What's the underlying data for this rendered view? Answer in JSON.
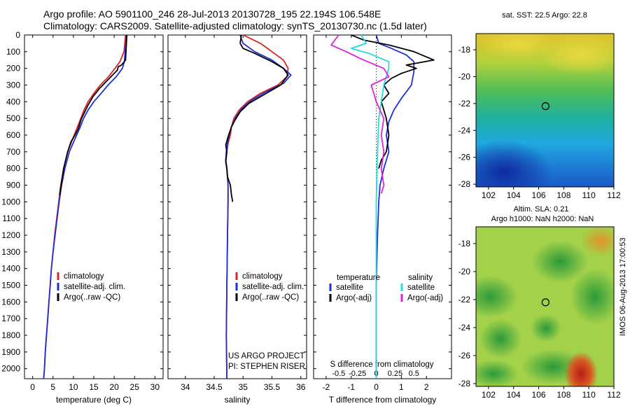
{
  "header": {
    "line1": "Argo profile: AO 5901100_246 28-Jul-2013 20130728_195 22.194S 106.548E",
    "line2": "Climatology: CARS2009. Satellite-adjusted climatology: synTS_20130730.nc (1.5d later)"
  },
  "side_stamp": "IMOS 06-Aug-2013 17:00:53",
  "colors": {
    "climatology": "#dd2222",
    "satellite": "#1e2ed8",
    "argo": "#000000",
    "sat_s": "#22dddd",
    "argo_s": "#dd22dd"
  },
  "chart_data": [
    {
      "type": "line",
      "id": "temperature",
      "xlabel": "temperature (deg C)",
      "xlim": [
        -2,
        32
      ],
      "xticks": [
        0,
        5,
        10,
        15,
        20,
        25,
        30
      ],
      "ylim": [
        2060,
        0
      ],
      "yticks": [
        0,
        100,
        200,
        300,
        400,
        500,
        600,
        700,
        800,
        900,
        1000,
        1100,
        1200,
        1300,
        1400,
        1500,
        1600,
        1700,
        1800,
        1900,
        2000
      ],
      "legend": [
        "climatology",
        "satellite-adj. clim.",
        "Argo(..raw -QC)"
      ],
      "series": [
        {
          "name": "climatology",
          "color": "#dd2222",
          "points": [
            [
              22.8,
              0
            ],
            [
              22.6,
              50
            ],
            [
              22.4,
              100
            ],
            [
              21.4,
              160
            ],
            [
              20.2,
              200
            ],
            [
              18.6,
              250
            ],
            [
              16.6,
              300
            ],
            [
              15.0,
              350
            ],
            [
              13.6,
              400
            ],
            [
              12.6,
              450
            ],
            [
              11.8,
              500
            ],
            [
              11.0,
              550
            ],
            [
              10.2,
              600
            ],
            [
              9.4,
              650
            ],
            [
              8.6,
              700
            ],
            [
              7.6,
              800
            ],
            [
              6.9,
              900
            ],
            [
              6.4,
              1000
            ],
            [
              5.9,
              1100
            ],
            [
              5.4,
              1200
            ],
            [
              5.0,
              1300
            ],
            [
              4.6,
              1400
            ],
            [
              4.3,
              1500
            ],
            [
              4.0,
              1600
            ],
            [
              3.7,
              1700
            ],
            [
              3.4,
              1800
            ],
            [
              3.1,
              1900
            ],
            [
              2.9,
              2000
            ],
            [
              2.7,
              2060
            ]
          ]
        },
        {
          "name": "satellite-adj. clim.",
          "color": "#1e2ed8",
          "points": [
            [
              22.9,
              0
            ],
            [
              22.9,
              50
            ],
            [
              22.7,
              100
            ],
            [
              22.5,
              160
            ],
            [
              22.0,
              200
            ],
            [
              20.5,
              250
            ],
            [
              18.5,
              300
            ],
            [
              16.8,
              350
            ],
            [
              15.0,
              400
            ],
            [
              13.6,
              450
            ],
            [
              12.5,
              500
            ],
            [
              11.7,
              550
            ],
            [
              10.8,
              600
            ],
            [
              9.9,
              650
            ],
            [
              9.0,
              700
            ],
            [
              7.9,
              800
            ],
            [
              7.1,
              900
            ],
            [
              6.5,
              1000
            ],
            [
              6.0,
              1100
            ],
            [
              5.5,
              1200
            ],
            [
              5.0,
              1300
            ],
            [
              4.6,
              1400
            ],
            [
              4.3,
              1500
            ],
            [
              4.0,
              1600
            ],
            [
              3.7,
              1700
            ],
            [
              3.4,
              1800
            ],
            [
              3.1,
              1900
            ],
            [
              2.9,
              2000
            ],
            [
              2.7,
              2060
            ]
          ]
        },
        {
          "name": "Argo(..raw -QC)",
          "color": "#000000",
          "points": [
            [
              23.1,
              0
            ],
            [
              23.0,
              50
            ],
            [
              22.9,
              100
            ],
            [
              22.8,
              150
            ],
            [
              21.8,
              180
            ],
            [
              21.0,
              190
            ],
            [
              20.8,
              210
            ],
            [
              19.6,
              240
            ],
            [
              18.0,
              280
            ],
            [
              16.4,
              320
            ],
            [
              14.8,
              370
            ],
            [
              13.6,
              420
            ],
            [
              12.8,
              460
            ],
            [
              12.0,
              500
            ],
            [
              11.2,
              560
            ],
            [
              10.4,
              600
            ],
            [
              9.4,
              640
            ],
            [
              8.6,
              700
            ],
            [
              7.6,
              800
            ],
            [
              7.0,
              900
            ],
            [
              6.6,
              960
            ]
          ]
        }
      ]
    },
    {
      "type": "line",
      "id": "salinity",
      "xlabel": "salinity",
      "xlim": [
        33.7,
        36.1
      ],
      "xticks": [
        34,
        34.5,
        35,
        35.5,
        36
      ],
      "ylim": [
        2060,
        0
      ],
      "legend": [
        "climatology",
        "satellite-adj. clim.",
        "Argo(..raw -QC)"
      ],
      "annotations": [
        "US ARGO PROJECT",
        "PI: STEPHEN RISER"
      ],
      "series": [
        {
          "name": "climatology",
          "color": "#dd2222",
          "points": [
            [
              35.0,
              0
            ],
            [
              35.3,
              50
            ],
            [
              35.5,
              100
            ],
            [
              35.7,
              150
            ],
            [
              35.78,
              200
            ],
            [
              35.76,
              250
            ],
            [
              35.6,
              300
            ],
            [
              35.3,
              350
            ],
            [
              35.08,
              400
            ],
            [
              34.93,
              450
            ],
            [
              34.84,
              500
            ],
            [
              34.8,
              550
            ],
            [
              34.78,
              600
            ],
            [
              34.74,
              650
            ],
            [
              34.72,
              700
            ],
            [
              34.7,
              750
            ],
            [
              34.72,
              800
            ],
            [
              34.74,
              900
            ],
            [
              34.74,
              1000
            ],
            [
              34.73,
              1200
            ],
            [
              34.72,
              1500
            ],
            [
              34.71,
              1800
            ],
            [
              34.72,
              2060
            ]
          ]
        },
        {
          "name": "satellite-adj. clim.",
          "color": "#1e2ed8",
          "points": [
            [
              34.95,
              0
            ],
            [
              35.0,
              50
            ],
            [
              35.2,
              100
            ],
            [
              35.5,
              150
            ],
            [
              35.7,
              200
            ],
            [
              35.83,
              240
            ],
            [
              35.7,
              290
            ],
            [
              35.4,
              340
            ],
            [
              35.15,
              390
            ],
            [
              34.98,
              440
            ],
            [
              34.88,
              490
            ],
            [
              34.8,
              550
            ],
            [
              34.76,
              600
            ],
            [
              34.73,
              650
            ],
            [
              34.71,
              700
            ],
            [
              34.7,
              750
            ],
            [
              34.72,
              800
            ],
            [
              34.74,
              900
            ],
            [
              34.74,
              1000
            ],
            [
              34.73,
              1200
            ],
            [
              34.72,
              1500
            ],
            [
              34.71,
              1800
            ],
            [
              34.72,
              2060
            ]
          ]
        },
        {
          "name": "Argo(..raw -QC)",
          "color": "#000000",
          "points": [
            [
              34.97,
              0
            ],
            [
              34.95,
              50
            ],
            [
              35.0,
              80
            ],
            [
              35.2,
              110
            ],
            [
              35.5,
              160
            ],
            [
              35.7,
              200
            ],
            [
              35.78,
              240
            ],
            [
              35.65,
              300
            ],
            [
              35.35,
              360
            ],
            [
              35.1,
              410
            ],
            [
              34.95,
              460
            ],
            [
              34.86,
              510
            ],
            [
              34.8,
              550
            ],
            [
              34.74,
              610
            ],
            [
              34.7,
              660
            ],
            [
              34.72,
              700
            ],
            [
              34.7,
              760
            ],
            [
              34.72,
              800
            ],
            [
              34.73,
              850
            ],
            [
              34.78,
              900
            ],
            [
              34.8,
              960
            ],
            [
              34.82,
              1000
            ]
          ]
        }
      ]
    },
    {
      "type": "line",
      "id": "differences",
      "xlabel": "T difference from climatology",
      "xlabel_top": "S difference from climatology",
      "xlim": [
        -2.5,
        3.0
      ],
      "xticks": [
        -2,
        -1,
        0,
        1,
        2
      ],
      "s_ticks": [
        "-0.5",
        "-0.25",
        "0",
        "0.25",
        "0.5"
      ],
      "legend_headers": [
        "temperature",
        "salinity"
      ],
      "legend": [
        "satellite",
        "Argo(-adj)",
        "satellite",
        "Argo(-adj)"
      ],
      "series": [
        {
          "name": "temperature satellite",
          "color": "#1e2ed8",
          "points": [
            [
              0,
              0
            ],
            [
              0.1,
              50
            ],
            [
              0.6,
              80
            ],
            [
              1.2,
              120
            ],
            [
              1.5,
              160
            ],
            [
              1.5,
              220
            ],
            [
              1.4,
              300
            ],
            [
              1.0,
              380
            ],
            [
              0.7,
              450
            ],
            [
              0.5,
              520
            ],
            [
              0.4,
              600
            ],
            [
              0.5,
              700
            ],
            [
              0.3,
              800
            ],
            [
              0.15,
              900
            ],
            [
              0.1,
              1000
            ],
            [
              0.05,
              1200
            ],
            [
              0.0,
              1500
            ],
            [
              0.0,
              2060
            ]
          ]
        },
        {
          "name": "temperature Argo(-adj)",
          "color": "#000000",
          "points": [
            [
              -1.0,
              0
            ],
            [
              -0.5,
              30
            ],
            [
              0.5,
              60
            ],
            [
              1.5,
              100
            ],
            [
              2.3,
              150
            ],
            [
              1.2,
              180
            ],
            [
              1.6,
              200
            ],
            [
              1.0,
              230
            ],
            [
              0.6,
              260
            ],
            [
              0.3,
              300
            ],
            [
              0.5,
              350
            ],
            [
              0.2,
              400
            ],
            [
              0.4,
              500
            ],
            [
              0.5,
              600
            ],
            [
              0.4,
              700
            ],
            [
              0.2,
              750
            ],
            [
              0.1,
              800
            ]
          ]
        },
        {
          "name": "salinity satellite",
          "color": "#22dddd",
          "points": [
            [
              -0.6,
              0
            ],
            [
              -0.4,
              50
            ],
            [
              -1.0,
              80
            ],
            [
              -0.3,
              110
            ],
            [
              0.5,
              160
            ],
            [
              0.5,
              200
            ],
            [
              0.3,
              300
            ],
            [
              0.2,
              400
            ],
            [
              0.1,
              500
            ],
            [
              0.05,
              700
            ],
            [
              0.0,
              1000
            ],
            [
              0.0,
              1500
            ],
            [
              0.0,
              2060
            ]
          ]
        },
        {
          "name": "salinity Argo(-adj)",
          "color": "#dd22dd",
          "points": [
            [
              -1.5,
              0
            ],
            [
              -1.8,
              60
            ],
            [
              -1.2,
              100
            ],
            [
              -0.5,
              150
            ],
            [
              0.3,
              200
            ],
            [
              0.5,
              250
            ],
            [
              -0.2,
              300
            ],
            [
              -0.1,
              350
            ],
            [
              0.0,
              400
            ],
            [
              0.3,
              500
            ],
            [
              0.2,
              600
            ],
            [
              0.3,
              700
            ],
            [
              0.2,
              800
            ],
            [
              0.3,
              900
            ],
            [
              0.2,
              950
            ]
          ]
        }
      ]
    },
    {
      "type": "heatmap",
      "id": "sst-map",
      "title": "sat. SST: 22.5 Argo: 22.8",
      "xticks": [
        102,
        104,
        106,
        108,
        110,
        112
      ],
      "yticks": [
        -18,
        -20,
        -22,
        -24,
        -26,
        -28
      ],
      "xlim": [
        101,
        112
      ],
      "ylim": [
        -28.2,
        -16.8
      ],
      "marker": [
        106.548,
        -22.194
      ]
    },
    {
      "type": "heatmap",
      "id": "sla-map",
      "title": "Altim. SLA: 0.21",
      "subtitle": "Argo h1000: NaN h2000: NaN",
      "xticks": [
        102,
        104,
        106,
        108,
        110,
        112
      ],
      "yticks": [
        -18,
        -20,
        -22,
        -24,
        -26,
        -28
      ],
      "xlim": [
        101,
        112
      ],
      "ylim": [
        -28.2,
        -16.8
      ],
      "marker": [
        106.548,
        -22.194
      ]
    }
  ]
}
